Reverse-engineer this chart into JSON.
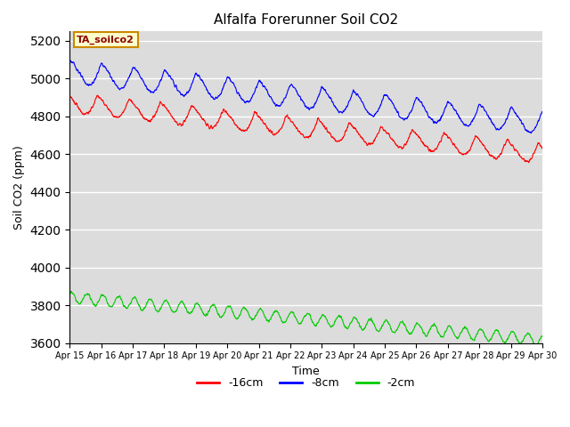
{
  "title": "Alfalfa Forerunner Soil CO2",
  "xlabel": "Time",
  "ylabel": "Soil CO2 (ppm)",
  "legend_label": "TA_soilco2",
  "series_labels": [
    "-16cm",
    "-8cm",
    "-2cm"
  ],
  "series_colors": [
    "#ff0000",
    "#0000ff",
    "#00cc00"
  ],
  "ylim": [
    3600,
    5250
  ],
  "yticks": [
    3600,
    3800,
    4000,
    4200,
    4400,
    4600,
    4800,
    5000,
    5200
  ],
  "bg_color": "#dcdcdc",
  "date_labels": [
    "Apr 15",
    "Apr 16",
    "Apr 17",
    "Apr 18",
    "Apr 19",
    "Apr 20",
    "Apr 21",
    "Apr 22",
    "Apr 23",
    "Apr 24",
    "Apr 25",
    "Apr 26",
    "Apr 27",
    "Apr 28",
    "Apr 29",
    "Apr 30"
  ],
  "n_points": 2160,
  "total_days": 15
}
